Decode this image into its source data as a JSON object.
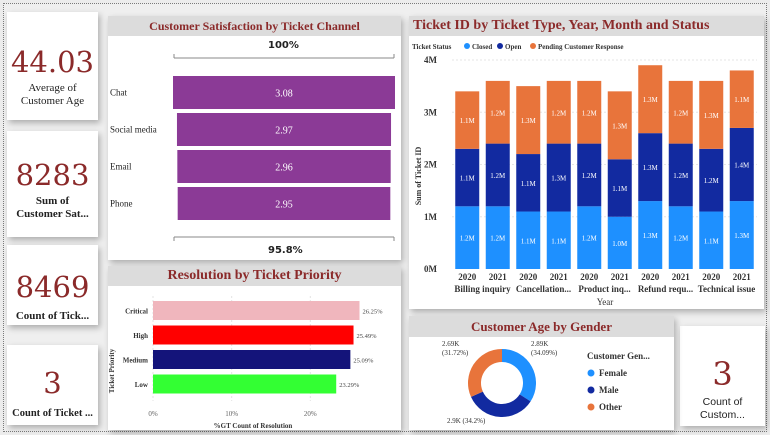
{
  "kpis": {
    "avg_age": {
      "value": "44.03",
      "label_line1": "Average of",
      "label_line2": "Customer Age"
    },
    "sum_sat": {
      "value": "8283",
      "label_line1": "Sum of",
      "label_line2": "Customer Sat..."
    },
    "count_tick": {
      "value": "8469",
      "label_line1": "Count of Tick..."
    },
    "count_ticket": {
      "value": "3",
      "label_line1": "Count of Ticket ..."
    },
    "count_custom": {
      "value": "3",
      "label_line1": "Count of Custom..."
    }
  },
  "satisfaction": {
    "title": "Customer Satisfaction by Ticket Channel",
    "top_label": "100%",
    "bottom_label": "95.8%",
    "color": "#8b3a96"
  },
  "resolution": {
    "title": "Resolution by Ticket Priority",
    "ylabel": "Ticket Priority",
    "xlabel": "%GT Count of Resolution"
  },
  "ticket_chart": {
    "title": "Ticket ID by Ticket Type, Year, Month and Status",
    "legend_title": "Ticket Status",
    "ylabel": "Sum of Ticket ID",
    "xlabel": "Year"
  },
  "gender": {
    "title": "Customer Age by Gender",
    "legend_title": "Customer Gen..."
  },
  "chart_data": [
    {
      "type": "bar",
      "title": "Customer Satisfaction by Ticket Channel",
      "categories": [
        "Chat",
        "Social media",
        "Email",
        "Phone"
      ],
      "values": [
        3.08,
        2.97,
        2.96,
        2.95
      ],
      "value_labels": [
        "3.08",
        "2.97",
        "2.96",
        "2.95"
      ],
      "xlim": [
        0,
        3.08
      ],
      "colors": [
        "#8b3a96"
      ]
    },
    {
      "type": "bar",
      "title": "Resolution by Ticket Priority",
      "categories": [
        "Critical",
        "High",
        "Medium",
        "Low"
      ],
      "values": [
        26.25,
        25.49,
        25.09,
        23.29
      ],
      "value_labels": [
        "26.25%",
        "25.49%",
        "25.09%",
        "23.29%"
      ],
      "colors": [
        "#f0b6bd",
        "#ff0000",
        "#14147a",
        "#33ff33"
      ],
      "xlim": [
        0,
        30
      ],
      "xticks": [
        "0%",
        "10%",
        "20%"
      ],
      "xlabel": "%GT Count of Resolution",
      "ylabel": "Ticket Priority"
    },
    {
      "type": "bar",
      "stacked": true,
      "title": "Ticket ID by Ticket Type, Year, Month and Status",
      "categories": [
        "2020",
        "2021",
        "2020",
        "2021",
        "2020",
        "2021",
        "2020",
        "2021",
        "2020",
        "2021"
      ],
      "groups": [
        "Billing inquiry",
        "Cancellation...",
        "Product inq...",
        "Refund requ...",
        "Technical issue"
      ],
      "ylim": [
        0,
        4
      ],
      "yticks": [
        "0M",
        "1M",
        "2M",
        "3M",
        "4M"
      ],
      "xlabel": "Year",
      "ylabel": "Sum of Ticket ID",
      "series": [
        {
          "name": "Closed",
          "color": "#1e90ff",
          "values": [
            1.2,
            1.2,
            1.1,
            1.1,
            1.2,
            1.0,
            1.3,
            1.2,
            1.1,
            1.3
          ],
          "labels": [
            "1.2M",
            "1.2M",
            "1.1M",
            "1.1M",
            "1.2M",
            "1.0M",
            "1.3M",
            "1.2M",
            "1.1M",
            "1.3M"
          ]
        },
        {
          "name": "Open",
          "color": "#122aa0",
          "values": [
            1.1,
            1.2,
            1.1,
            1.3,
            1.2,
            1.1,
            1.3,
            1.2,
            1.2,
            1.4
          ],
          "labels": [
            "1.1M",
            "1.2M",
            "1.1M",
            "1.3M",
            "1.2M",
            "1.1M",
            "1.3M",
            "1.2M",
            "1.2M",
            "1.4M"
          ]
        },
        {
          "name": "Pending Customer Response",
          "color": "#e8743b",
          "values": [
            1.1,
            1.2,
            1.3,
            1.2,
            1.2,
            1.3,
            1.3,
            1.2,
            1.3,
            1.1
          ],
          "labels": [
            "1.1M",
            "1.2M",
            "1.3M",
            "1.2M",
            "1.2M",
            "1.3M",
            "1.3M",
            "1.2M",
            "1.3M",
            "1.1M"
          ]
        }
      ]
    },
    {
      "type": "pie",
      "donut": true,
      "title": "Customer Age by Gender",
      "categories": [
        "Female",
        "Male",
        "Other"
      ],
      "values": [
        2.89,
        2.9,
        2.69
      ],
      "value_labels": [
        "2.89K\n(34.09%)",
        "2.9K (34.2%)",
        "2.69K\n(31.72%)"
      ],
      "colors": [
        "#1e90ff",
        "#122aa0",
        "#e8743b"
      ],
      "legend_title": "Customer Gen..."
    }
  ]
}
